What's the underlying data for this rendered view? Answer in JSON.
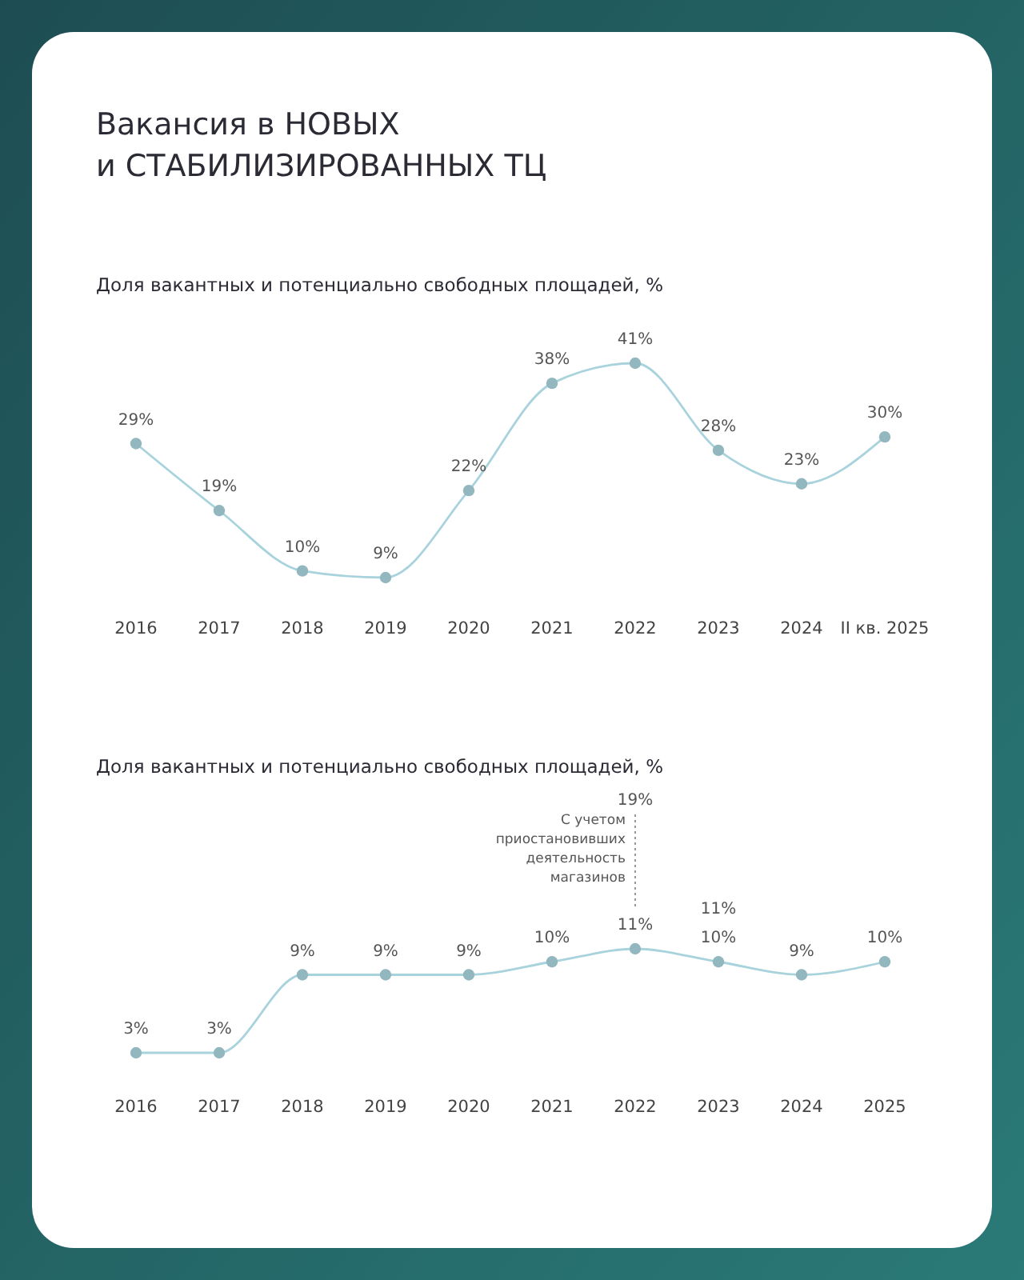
{
  "chart_data": [
    {
      "type": "line",
      "title": "Вакансия в НОВЫХ и СТАБИЛИЗИРОВАННЫХ ТЦ",
      "subtitle": "Доля вакантных и потенциально свободных площадей, %",
      "categories": [
        "2016",
        "2017",
        "2018",
        "2019",
        "2020",
        "2021",
        "2022",
        "2023",
        "2024",
        "II кв. 2025"
      ],
      "series": [
        {
          "color": "#a9d3dc",
          "values": [
            29,
            19,
            10,
            9,
            22,
            38,
            41,
            28,
            23,
            30
          ],
          "value_labels": [
            "29%",
            "19%",
            "10%",
            "9%",
            "22%",
            "38%",
            "41%",
            "28%",
            "23%",
            "30%"
          ]
        }
      ],
      "marker": "circle",
      "line_style": "solid",
      "tick_labels": "x"
    },
    {
      "type": "line",
      "subtitle": "Доля вакантных и потенциально свободных площадей, %",
      "categories": [
        "2016",
        "2017",
        "2018",
        "2019",
        "2020",
        "2021",
        "2022",
        "2023",
        "2024",
        "2025"
      ],
      "series": [
        {
          "color": "#a9d3dc",
          "values": [
            3,
            3,
            9,
            9,
            9,
            10,
            11,
            10,
            9,
            10
          ],
          "value_labels": [
            "3%",
            "3%",
            "9%",
            "9%",
            "9%",
            "10%",
            "11%",
            "10%",
            "9%",
            "10%"
          ]
        }
      ],
      "annotations": [
        "19%",
        "11%",
        "С учетом приостановивших деятельность магазинов"
      ],
      "marker": "circle",
      "line_style": "solid",
      "tick_labels": "x"
    }
  ]
}
